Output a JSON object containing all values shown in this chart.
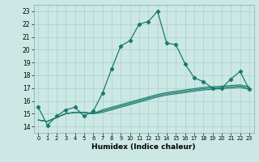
{
  "xlabel": "Humidex (Indice chaleur)",
  "xlim": [
    -0.5,
    23.5
  ],
  "ylim": [
    13.5,
    23.5
  ],
  "yticks": [
    14,
    15,
    16,
    17,
    18,
    19,
    20,
    21,
    22,
    23
  ],
  "xticks": [
    0,
    1,
    2,
    3,
    4,
    5,
    6,
    7,
    8,
    9,
    10,
    11,
    12,
    13,
    14,
    15,
    16,
    17,
    18,
    19,
    20,
    21,
    22,
    23
  ],
  "background_color": "#cce8e4",
  "grid_color": "#aacfca",
  "line_color": "#1a7a6e",
  "main_line": [
    15.5,
    14.1,
    14.8,
    15.3,
    15.5,
    14.8,
    15.2,
    16.6,
    18.5,
    20.3,
    20.7,
    22.0,
    22.2,
    23.0,
    20.5,
    20.4,
    18.9,
    17.8,
    17.5,
    17.0,
    17.0,
    17.7,
    18.3,
    16.9
  ],
  "flat_line1": [
    14.5,
    14.4,
    14.7,
    15.0,
    15.1,
    15.1,
    15.0,
    15.1,
    15.3,
    15.5,
    15.7,
    15.9,
    16.1,
    16.3,
    16.45,
    16.55,
    16.65,
    16.75,
    16.85,
    16.9,
    16.95,
    17.0,
    17.05,
    16.9
  ],
  "flat_line2": [
    14.5,
    14.4,
    14.7,
    15.0,
    15.1,
    15.1,
    15.0,
    15.2,
    15.4,
    15.6,
    15.8,
    16.0,
    16.2,
    16.4,
    16.55,
    16.65,
    16.75,
    16.85,
    16.95,
    17.0,
    17.05,
    17.1,
    17.15,
    17.0
  ],
  "flat_line3": [
    14.5,
    14.4,
    14.7,
    15.0,
    15.1,
    15.1,
    15.0,
    15.3,
    15.5,
    15.7,
    15.9,
    16.1,
    16.3,
    16.5,
    16.65,
    16.75,
    16.85,
    16.95,
    17.05,
    17.1,
    17.15,
    17.2,
    17.25,
    17.1
  ]
}
